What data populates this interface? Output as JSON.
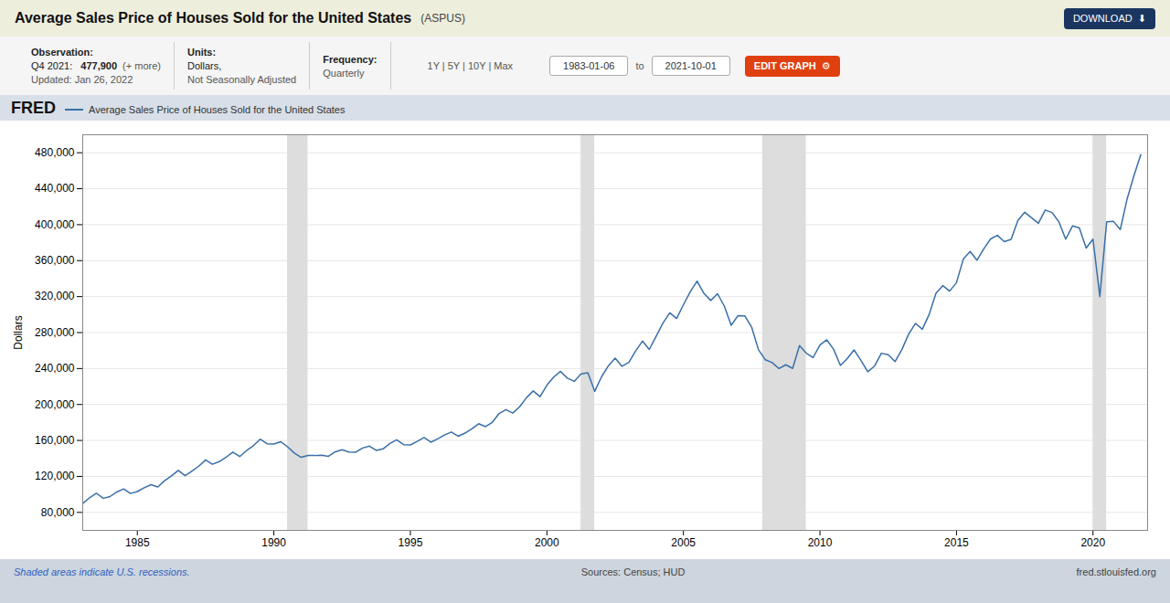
{
  "chart_data": {
    "type": "line",
    "title": "Average Sales Price of Houses Sold for the United States",
    "subtitle": "(ASPUS)",
    "ylabel": "Dollars",
    "xlim": [
      1983,
      2022
    ],
    "xticks": [
      1985,
      1990,
      1995,
      2000,
      2005,
      2010,
      2015,
      2020
    ],
    "ylim": [
      60000,
      500000
    ],
    "yticks": [
      {
        "value": 80000,
        "label": "80,000"
      },
      {
        "value": 120000,
        "label": "120,000"
      },
      {
        "value": 160000,
        "label": "160,000"
      },
      {
        "value": 200000,
        "label": "200,000"
      },
      {
        "value": 240000,
        "label": "240,000"
      },
      {
        "value": 280000,
        "label": "280,000"
      },
      {
        "value": 320000,
        "label": "320,000"
      },
      {
        "value": 360000,
        "label": "360,000"
      },
      {
        "value": 400000,
        "label": "400,000"
      },
      {
        "value": 440000,
        "label": "440,000"
      },
      {
        "value": 480000,
        "label": "480,000"
      }
    ],
    "grid": true,
    "legend": "top",
    "recessions": [
      [
        1990.5,
        1991.25
      ],
      [
        2001.25,
        2001.75
      ],
      [
        2007.9,
        2009.5
      ],
      [
        2020.0,
        2020.5
      ]
    ],
    "annotations": [
      "Observation:",
      "Q4 2021: ",
      "477,900",
      "(+ more)",
      "Updated: Jan 26, 2022",
      "Units:",
      "Dollars,",
      "Not Seasonally Adjusted",
      "Frequency:",
      "Quarterly",
      "1Y | 5Y | 10Y | Max",
      "1983-01-06",
      "to",
      "2021-10-01",
      "EDIT GRAPH  ⚙",
      "DOWNLOAD  ⬇",
      "FRED",
      "Shaded areas indicate U.S. recessions.",
      "Sources: Census; HUD",
      "fred.stlouisfed.org"
    ],
    "x": [
      1983.0,
      1983.25,
      1983.5,
      1983.75,
      1984.0,
      1984.25,
      1984.5,
      1984.75,
      1985.0,
      1985.25,
      1985.5,
      1985.75,
      1986.0,
      1986.25,
      1986.5,
      1986.75,
      1987.0,
      1987.25,
      1987.5,
      1987.75,
      1988.0,
      1988.25,
      1988.5,
      1988.75,
      1989.0,
      1989.25,
      1989.5,
      1989.75,
      1990.0,
      1990.25,
      1990.5,
      1990.75,
      1991.0,
      1991.25,
      1991.5,
      1991.75,
      1992.0,
      1992.25,
      1992.5,
      1992.75,
      1993.0,
      1993.25,
      1993.5,
      1993.75,
      1994.0,
      1994.25,
      1994.5,
      1994.75,
      1995.0,
      1995.25,
      1995.5,
      1995.75,
      1996.0,
      1996.25,
      1996.5,
      1996.75,
      1997.0,
      1997.25,
      1997.5,
      1997.75,
      1998.0,
      1998.25,
      1998.5,
      1998.75,
      1999.0,
      1999.25,
      1999.5,
      1999.75,
      2000.0,
      2000.25,
      2000.5,
      2000.75,
      2001.0,
      2001.25,
      2001.5,
      2001.75,
      2002.0,
      2002.25,
      2002.5,
      2002.75,
      2003.0,
      2003.25,
      2003.5,
      2003.75,
      2004.0,
      2004.25,
      2004.5,
      2004.75,
      2005.0,
      2005.25,
      2005.5,
      2005.75,
      2006.0,
      2006.25,
      2006.5,
      2006.75,
      2007.0,
      2007.25,
      2007.5,
      2007.75,
      2008.0,
      2008.25,
      2008.5,
      2008.75,
      2009.0,
      2009.25,
      2009.5,
      2009.75,
      2010.0,
      2010.25,
      2010.5,
      2010.75,
      2011.0,
      2011.25,
      2011.5,
      2011.75,
      2012.0,
      2012.25,
      2012.5,
      2012.75,
      2013.0,
      2013.25,
      2013.5,
      2013.75,
      2014.0,
      2014.25,
      2014.5,
      2014.75,
      2015.0,
      2015.25,
      2015.5,
      2015.75,
      2016.0,
      2016.25,
      2016.5,
      2016.75,
      2017.0,
      2017.25,
      2017.5,
      2017.75,
      2018.0,
      2018.25,
      2018.5,
      2018.75,
      2019.0,
      2019.25,
      2019.5,
      2019.75,
      2020.0,
      2020.25,
      2020.5,
      2020.75,
      2021.0,
      2021.25,
      2021.5,
      2021.75
    ],
    "series": [
      {
        "name": "Average Sales Price of Houses Sold for the United States",
        "color": "#3a6fa8",
        "values": [
          89900,
          96300,
          101400,
          95700,
          97600,
          102700,
          106100,
          101000,
          103200,
          107400,
          110800,
          108300,
          115200,
          120600,
          126700,
          120800,
          125900,
          131400,
          138400,
          133500,
          136400,
          141300,
          147000,
          142100,
          148700,
          154200,
          161400,
          156400,
          156100,
          158600,
          153000,
          146000,
          141200,
          143400,
          143200,
          143600,
          142400,
          147400,
          149700,
          147200,
          147000,
          151600,
          153700,
          149000,
          150600,
          156700,
          160700,
          155300,
          155000,
          159000,
          163200,
          158100,
          161700,
          166000,
          169400,
          164700,
          168200,
          173000,
          178600,
          175400,
          180100,
          190000,
          194300,
          190500,
          197500,
          207500,
          215100,
          208700,
          221500,
          230500,
          236900,
          229300,
          225700,
          234100,
          235200,
          214600,
          230700,
          243000,
          251500,
          242500,
          246900,
          259600,
          270500,
          261200,
          275800,
          290500,
          302000,
          295700,
          311000,
          325300,
          337200,
          323600,
          315700,
          323200,
          309200,
          288100,
          298900,
          298500,
          285900,
          260800,
          249700,
          246600,
          239900,
          244200,
          240100,
          265600,
          257100,
          252300,
          266200,
          271900,
          261300,
          243400,
          251100,
          260700,
          249200,
          236400,
          242700,
          257000,
          255400,
          247700,
          261100,
          278400,
          290200,
          283700,
          300200,
          323800,
          332200,
          326100,
          335500,
          361700,
          370200,
          360500,
          373100,
          384200,
          388100,
          381100,
          383600,
          404800,
          413800,
          407600,
          401500,
          416300,
          413500,
          403200,
          383900,
          398600,
          396300,
          374000,
          383900,
          320000,
          403100,
          403600,
          394600,
          428700,
          454600,
          477900
        ]
      }
    ]
  }
}
